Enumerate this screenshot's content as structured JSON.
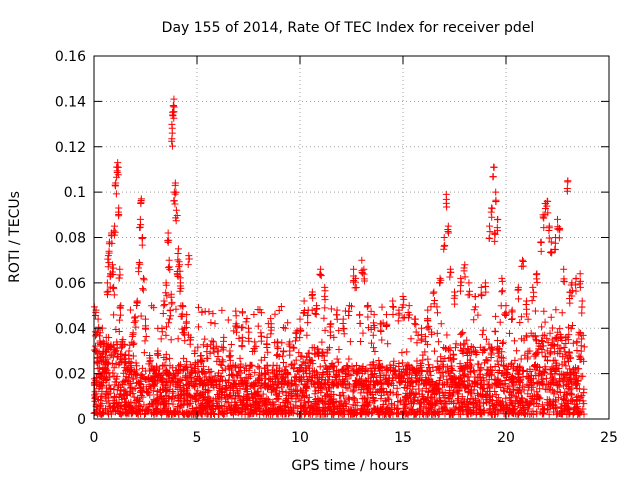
{
  "chart_data": {
    "type": "scatter",
    "title": "Day 155 of 2014, Rate Of TEC Index for receiver pdel",
    "xlabel": "GPS time / hours",
    "ylabel": "ROTI / TECUs",
    "xlim": [
      0,
      25
    ],
    "ylim": [
      0,
      0.16
    ],
    "xticks": [
      0,
      5,
      10,
      15,
      20,
      25
    ],
    "xtick_labels": [
      "0",
      "5",
      "10",
      "15",
      "20",
      "25"
    ],
    "yticks": [
      0,
      0.02,
      0.04,
      0.06,
      0.08,
      0.1,
      0.12,
      0.14,
      0.16
    ],
    "ytick_labels": [
      "0",
      "0.02",
      "0.04",
      "0.06",
      "0.08",
      "0.1",
      "0.12",
      "0.14",
      "0.16"
    ],
    "grid": true,
    "marker": "+",
    "color": "#ff0000",
    "series": [
      {
        "name": "ROTI",
        "points": [
          [
            0.05,
            0.012
          ],
          [
            0.1,
            0.048
          ],
          [
            0.15,
            0.03
          ],
          [
            0.2,
            0.044
          ],
          [
            0.25,
            0.02
          ],
          [
            0.3,
            0.038
          ],
          [
            0.35,
            0.015
          ],
          [
            0.45,
            0.034
          ],
          [
            0.55,
            0.025
          ],
          [
            0.6,
            0.018
          ],
          [
            0.65,
            0.06
          ],
          [
            0.7,
            0.072
          ],
          [
            0.75,
            0.078
          ],
          [
            0.8,
            0.064
          ],
          [
            0.85,
            0.082
          ],
          [
            0.9,
            0.068
          ],
          [
            0.95,
            0.058
          ],
          [
            1.0,
            0.085
          ],
          [
            1.05,
            0.104
          ],
          [
            1.1,
            0.111
          ],
          [
            1.15,
            0.113
          ],
          [
            1.2,
            0.093
          ],
          [
            1.25,
            0.066
          ],
          [
            1.3,
            0.05
          ],
          [
            1.4,
            0.035
          ],
          [
            1.5,
            0.028
          ],
          [
            1.6,
            0.022
          ],
          [
            1.7,
            0.03
          ],
          [
            1.8,
            0.025
          ],
          [
            1.9,
            0.038
          ],
          [
            2.0,
            0.045
          ],
          [
            2.1,
            0.052
          ],
          [
            2.2,
            0.069
          ],
          [
            2.25,
            0.088
          ],
          [
            2.3,
            0.097
          ],
          [
            2.35,
            0.08
          ],
          [
            2.4,
            0.062
          ],
          [
            2.5,
            0.04
          ],
          [
            2.7,
            0.028
          ],
          [
            2.9,
            0.022
          ],
          [
            3.1,
            0.03
          ],
          [
            3.3,
            0.04
          ],
          [
            3.4,
            0.052
          ],
          [
            3.5,
            0.06
          ],
          [
            3.6,
            0.082
          ],
          [
            3.65,
            0.07
          ],
          [
            3.7,
            0.048
          ],
          [
            3.75,
            0.055
          ],
          [
            3.8,
            0.126
          ],
          [
            3.82,
            0.134
          ],
          [
            3.85,
            0.138
          ],
          [
            3.88,
            0.141
          ],
          [
            3.9,
            0.1
          ],
          [
            3.95,
            0.104
          ],
          [
            4.0,
            0.092
          ],
          [
            4.05,
            0.065
          ],
          [
            4.1,
            0.075
          ],
          [
            4.15,
            0.068
          ],
          [
            4.2,
            0.06
          ],
          [
            4.3,
            0.05
          ],
          [
            4.4,
            0.04
          ],
          [
            4.5,
            0.046
          ],
          [
            4.6,
            0.072
          ],
          [
            4.7,
            0.036
          ],
          [
            4.9,
            0.03
          ],
          [
            5.2,
            0.028
          ],
          [
            5.5,
            0.032
          ],
          [
            5.8,
            0.034
          ],
          [
            6.0,
            0.03
          ],
          [
            6.3,
            0.036
          ],
          [
            6.6,
            0.03
          ],
          [
            6.9,
            0.042
          ],
          [
            7.2,
            0.036
          ],
          [
            7.5,
            0.04
          ],
          [
            7.8,
            0.034
          ],
          [
            8.1,
            0.038
          ],
          [
            8.4,
            0.036
          ],
          [
            8.6,
            0.042
          ],
          [
            8.9,
            0.034
          ],
          [
            9.2,
            0.03
          ],
          [
            9.5,
            0.034
          ],
          [
            9.8,
            0.038
          ],
          [
            10.0,
            0.044
          ],
          [
            10.2,
            0.052
          ],
          [
            10.4,
            0.048
          ],
          [
            10.6,
            0.056
          ],
          [
            10.8,
            0.05
          ],
          [
            11.0,
            0.066
          ],
          [
            11.2,
            0.058
          ],
          [
            11.5,
            0.042
          ],
          [
            11.8,
            0.048
          ],
          [
            12.1,
            0.044
          ],
          [
            12.4,
            0.05
          ],
          [
            12.6,
            0.066
          ],
          [
            12.7,
            0.062
          ],
          [
            12.9,
            0.046
          ],
          [
            13.0,
            0.07
          ],
          [
            13.1,
            0.066
          ],
          [
            13.3,
            0.05
          ],
          [
            13.6,
            0.046
          ],
          [
            13.9,
            0.042
          ],
          [
            14.2,
            0.046
          ],
          [
            14.5,
            0.052
          ],
          [
            14.8,
            0.048
          ],
          [
            15.0,
            0.054
          ],
          [
            15.3,
            0.05
          ],
          [
            15.6,
            0.044
          ],
          [
            15.9,
            0.04
          ],
          [
            16.2,
            0.048
          ],
          [
            16.5,
            0.056
          ],
          [
            16.8,
            0.062
          ],
          [
            17.0,
            0.08
          ],
          [
            17.1,
            0.099
          ],
          [
            17.2,
            0.085
          ],
          [
            17.3,
            0.066
          ],
          [
            17.5,
            0.056
          ],
          [
            17.8,
            0.062
          ],
          [
            18.0,
            0.068
          ],
          [
            18.2,
            0.06
          ],
          [
            18.5,
            0.054
          ],
          [
            18.8,
            0.058
          ],
          [
            19.0,
            0.06
          ],
          [
            19.2,
            0.085
          ],
          [
            19.3,
            0.093
          ],
          [
            19.4,
            0.111
          ],
          [
            19.45,
            0.082
          ],
          [
            19.5,
            0.1
          ],
          [
            19.6,
            0.088
          ],
          [
            19.8,
            0.062
          ],
          [
            20.0,
            0.05
          ],
          [
            20.3,
            0.048
          ],
          [
            20.6,
            0.058
          ],
          [
            20.8,
            0.07
          ],
          [
            21.0,
            0.052
          ],
          [
            21.3,
            0.058
          ],
          [
            21.5,
            0.064
          ],
          [
            21.7,
            0.078
          ],
          [
            21.8,
            0.09
          ],
          [
            21.9,
            0.095
          ],
          [
            22.0,
            0.096
          ],
          [
            22.1,
            0.085
          ],
          [
            22.2,
            0.078
          ],
          [
            22.4,
            0.08
          ],
          [
            22.5,
            0.088
          ],
          [
            22.6,
            0.084
          ],
          [
            22.8,
            0.066
          ],
          [
            23.0,
            0.105
          ],
          [
            23.1,
            0.056
          ],
          [
            23.2,
            0.06
          ],
          [
            23.4,
            0.062
          ],
          [
            23.6,
            0.064
          ],
          [
            23.7,
            0.052
          ]
        ],
        "band_summary": "dense band of points between 0.002 and about 0.03 across 0–23.8 h"
      }
    ]
  }
}
